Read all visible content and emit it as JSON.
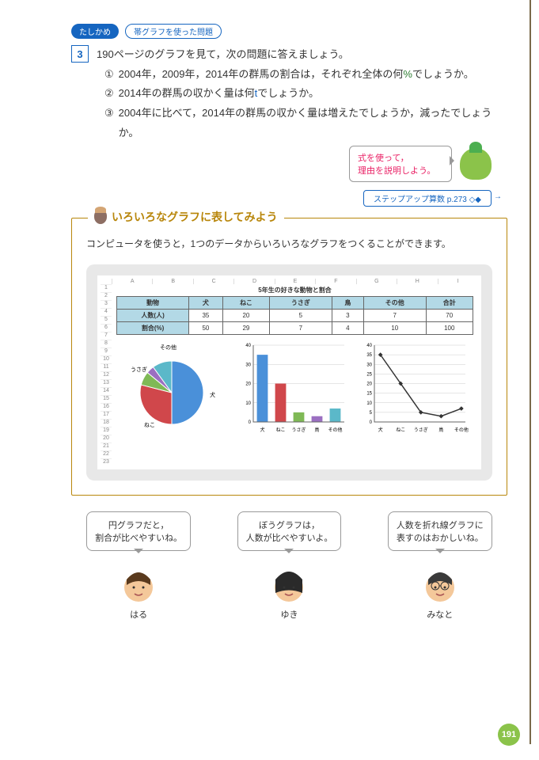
{
  "header": {
    "tashikame": "たしかめ",
    "topic": "帯グラフを使った問題"
  },
  "question": {
    "num": "3",
    "intro": "190ページのグラフを見て，次の問題に答えましょう。",
    "subs": [
      {
        "n": "①",
        "text_a": "2004年，2009年，2014年の群馬の割合は，それぞれ全体の何",
        "pct": "%",
        "text_b": "でしょうか。"
      },
      {
        "n": "②",
        "text_a": "2014年の群馬の収かく量は何",
        "unit": "t",
        "text_b": "でしょうか。"
      },
      {
        "n": "③",
        "text_a": "2004年に比べて，2014年の群馬の収かく量は増えたでしょうか，減ったでしょうか。",
        "pct": "",
        "text_b": ""
      }
    ]
  },
  "bubble": {
    "line1": "式を使って，",
    "line2": "理由を説明しよう。"
  },
  "stepup": "ステップアップ算数  p.273 ◇◆",
  "panel": {
    "title": "いろいろなグラフに表してみよう",
    "intro": "コンピュータを使うと，1つのデータからいろいろなグラフをつくることができます。"
  },
  "sheet": {
    "cols": [
      "A",
      "B",
      "C",
      "D",
      "E",
      "F",
      "G",
      "H",
      "I"
    ],
    "rows": 23,
    "table_title": "5年生の好きな動物と割合",
    "headers": [
      "動物",
      "犬",
      "ねこ",
      "うさぎ",
      "鳥",
      "その他",
      "合計"
    ],
    "r1": [
      "人数(人)",
      "35",
      "20",
      "5",
      "3",
      "7",
      "70"
    ],
    "r2": [
      "割合(%)",
      "50",
      "29",
      "7",
      "4",
      "10",
      "100"
    ]
  },
  "pie": {
    "labels": [
      "犬",
      "ねこ",
      "うさぎ",
      "鳥",
      "その他"
    ],
    "values": [
      50,
      29,
      7,
      4,
      10
    ],
    "colors": [
      "#4a90d9",
      "#d0474b",
      "#7fb956",
      "#9b6fc1",
      "#5bb8c9"
    ],
    "side_labels": {
      "usagi": "うさぎ",
      "sonota": "その他",
      "inu": "犬",
      "neko": "ねこ"
    }
  },
  "bar": {
    "categories": [
      "犬",
      "ねこ",
      "うさぎ",
      "鳥",
      "その他"
    ],
    "values": [
      35,
      20,
      5,
      3,
      7
    ],
    "colors": [
      "#4a90d9",
      "#d0474b",
      "#7fb956",
      "#9b6fc1",
      "#5bb8c9"
    ],
    "ymax": 40,
    "ystep": 10
  },
  "line": {
    "categories": [
      "犬",
      "ねこ",
      "うさぎ",
      "鳥",
      "その他"
    ],
    "values": [
      35,
      20,
      5,
      3,
      7
    ],
    "ymax": 40,
    "ystep": 5,
    "color": "#333"
  },
  "characters": [
    {
      "name": "はる",
      "text": "円グラフだと，\n割合が比べやすいね。",
      "hair": "#5a3a1e",
      "skin": "#f4c89a"
    },
    {
      "name": "ゆき",
      "text": "ぼうグラフは，\n人数が比べやすいよ。",
      "hair": "#2a2a2a",
      "skin": "#f4c89a"
    },
    {
      "name": "みなと",
      "text": "人数を折れ線グラフに\n表すのはおかしいね。",
      "hair": "#3a3a3a",
      "skin": "#f4c89a"
    }
  ],
  "page": "191"
}
